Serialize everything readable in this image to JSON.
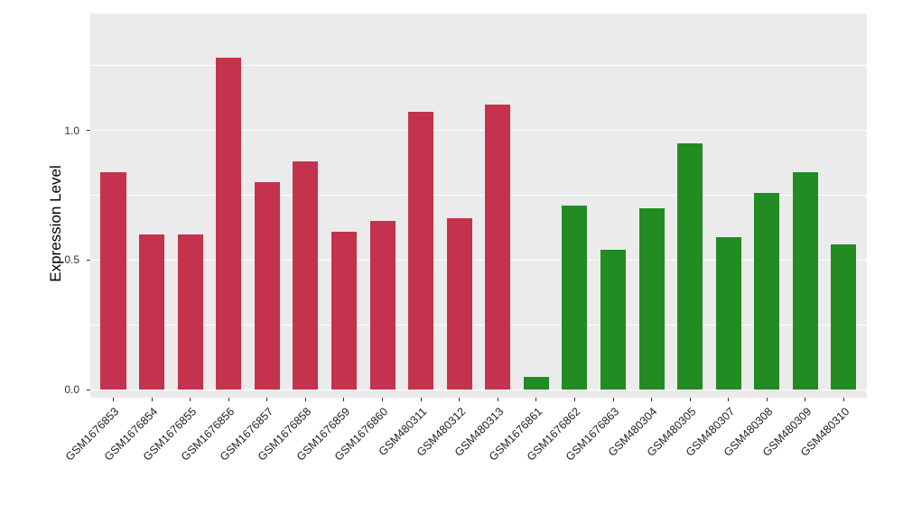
{
  "chart_data": {
    "type": "bar",
    "title": "",
    "xlabel": "",
    "ylabel": "Expression Level",
    "categories": [
      "GSM1676853",
      "GSM1676854",
      "GSM1676855",
      "GSM1676856",
      "GSM1676857",
      "GSM1676858",
      "GSM1676859",
      "GSM1676860",
      "GSM480311",
      "GSM480312",
      "GSM480313",
      "GSM1676861",
      "GSM1676862",
      "GSM1676863",
      "GSM480304",
      "GSM480305",
      "GSM480307",
      "GSM480308",
      "GSM480309",
      "GSM480310"
    ],
    "values": [
      0.84,
      0.6,
      0.6,
      1.28,
      0.8,
      0.88,
      0.61,
      0.65,
      1.07,
      0.66,
      1.1,
      0.05,
      0.71,
      0.54,
      0.7,
      0.95,
      0.59,
      0.76,
      0.84,
      0.56
    ],
    "bar_colors": [
      "#C5324E",
      "#C5324E",
      "#C5324E",
      "#C5324E",
      "#C5324E",
      "#C5324E",
      "#C5324E",
      "#C5324E",
      "#C5324E",
      "#C5324E",
      "#C5324E",
      "#228B22",
      "#228B22",
      "#228B22",
      "#228B22",
      "#228B22",
      "#228B22",
      "#228B22",
      "#228B22",
      "#228B22"
    ],
    "group_colors": {
      "group1_red": "#C5324E",
      "group2_green": "#228B22"
    },
    "yticks": [
      "0.0",
      "0.5",
      "1.0"
    ],
    "ytick_values": [
      0,
      0.5,
      1.0
    ],
    "minor_ytick_values": [
      0.25,
      0.75,
      1.25
    ],
    "ylim": [
      -0.03,
      1.45
    ],
    "grid": true,
    "legend": "none",
    "panel_background": "#EBEBEB",
    "grid_color": "#FFFFFF",
    "axis_text_color": "#333333"
  }
}
